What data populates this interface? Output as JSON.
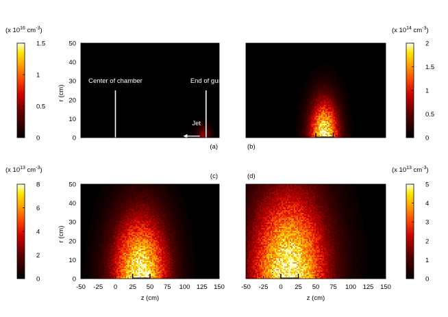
{
  "chart_data": [
    {
      "id": "a",
      "type": "heatmap",
      "panel_label": "(a)",
      "ylabel": "r (cm)",
      "xlabel": "",
      "xlim": [
        -50,
        150
      ],
      "ylim": [
        0,
        50
      ],
      "yticks": [
        "0",
        "10",
        "20",
        "30",
        "40",
        "50"
      ],
      "xticks": [],
      "colorbar": {
        "side": "left",
        "unit_prefix": "(x 10",
        "unit_exp": "16",
        "unit_suffix": " cm",
        "unit_sup": "-3",
        "unit_close": ")",
        "min": 0,
        "max": 1.5,
        "ticks": [
          "0",
          "0.5",
          "1",
          "1.5"
        ]
      },
      "annotations": [
        {
          "text": "Center of chamber",
          "x": 0,
          "y": 29
        },
        {
          "text": "End of gun",
          "x": 131,
          "y": 29
        },
        {
          "text": "Jet",
          "x": 117,
          "y": 6.5
        }
      ],
      "vertical_lines_z": [
        0,
        131
      ],
      "arrow": {
        "from_z": 122,
        "to_z": 98,
        "r": 0.8
      },
      "blob": {
        "z_center": 128,
        "z_sigma": 7,
        "r_sigma": 4.5,
        "peak": 0.35
      }
    },
    {
      "id": "b",
      "type": "heatmap",
      "panel_label": "(b)",
      "xlim": [
        -50,
        150
      ],
      "ylim": [
        0,
        50
      ],
      "xticks": [],
      "yticks": [],
      "colorbar": {
        "side": "right",
        "unit_prefix": "(x 10",
        "unit_exp": "14",
        "unit_suffix": " cm",
        "unit_sup": "-3",
        "unit_close": ")",
        "min": 0,
        "max": 2,
        "ticks": [
          "0",
          "0.5",
          "1",
          "1.5",
          "2"
        ]
      },
      "marks_z": [
        50,
        75
      ],
      "blob": {
        "z_center": 62,
        "z_sigma": 15,
        "r_sigma": 14,
        "peak": 1.0
      }
    },
    {
      "id": "c",
      "type": "heatmap",
      "panel_label": "(c)",
      "ylabel": "r (cm)",
      "xlabel": "z (cm)",
      "xlim": [
        -50,
        150
      ],
      "ylim": [
        0,
        50
      ],
      "yticks": [
        "0",
        "10",
        "20",
        "30",
        "40",
        "50"
      ],
      "xticks": [
        "-50",
        "-25",
        "0",
        "25",
        "50",
        "75",
        "100",
        "125",
        "150"
      ],
      "colorbar": {
        "side": "left",
        "unit_prefix": "(x 10",
        "unit_exp": "13",
        "unit_suffix": " cm",
        "unit_sup": "-3",
        "unit_close": ")",
        "min": 0,
        "max": 8,
        "ticks": [
          "0",
          "2",
          "4",
          "6",
          "8"
        ]
      },
      "marks_z": [
        25,
        50
      ],
      "blob": {
        "z_center": 36,
        "z_sigma": 29,
        "r_sigma": 24,
        "peak": 1.0
      }
    },
    {
      "id": "d",
      "type": "heatmap",
      "panel_label": "(d)",
      "xlabel": "z (cm)",
      "xlim": [
        -50,
        150
      ],
      "ylim": [
        0,
        50
      ],
      "yticks": [],
      "xticks": [
        "-50",
        "-25",
        "0",
        "25",
        "50",
        "75",
        "100",
        "125",
        "150"
      ],
      "colorbar": {
        "side": "right",
        "unit_prefix": "(x 10",
        "unit_exp": "13",
        "unit_suffix": " cm",
        "unit_sup": "-3",
        "unit_close": ")",
        "min": 0,
        "max": 5,
        "ticks": [
          "0",
          "1",
          "2",
          "3",
          "4",
          "5"
        ]
      },
      "marks_z": [
        0,
        25
      ],
      "blob": {
        "z_center": 12,
        "z_sigma": 40,
        "r_sigma": 33,
        "peak": 1.0
      }
    }
  ]
}
